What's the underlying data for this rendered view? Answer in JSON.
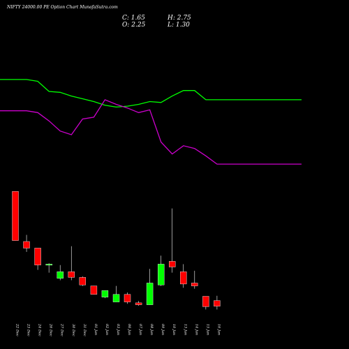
{
  "header": {
    "title": "NIFTY 24000.00  PE Option  Chart MunafaSutra.com",
    "close_label": "C: 1.65",
    "high_label": "H: 2.75",
    "open_label": "O: 2.25",
    "low_label": "L: 1.30"
  },
  "colors": {
    "background": "#000000",
    "up": "#00ff00",
    "down": "#ff0000",
    "line_green": "#00ff00",
    "line_magenta": "#cc00cc",
    "text": "#ffffff"
  },
  "chart_data": {
    "type": "candlestick",
    "categories": [
      "22 Dec",
      "23 Dec",
      "24 Dec",
      "26 Dec",
      "27 Dec",
      "30 Dec",
      "31 Dec",
      "01 Jan",
      "02 Jan",
      "03 Jan",
      "06 Jan",
      "07 Jan",
      "08 Jan",
      "09 Jan",
      "10 Jan",
      "13 Jan",
      "14 Jan",
      "15 Jan",
      "16 Jan"
    ],
    "candles": [
      {
        "open": 13.8,
        "high": 13.8,
        "low": 8.6,
        "close": 8.6
      },
      {
        "open": 8.5,
        "high": 9.2,
        "low": 7.4,
        "close": 7.8
      },
      {
        "open": 7.8,
        "high": 7.8,
        "low": 5.5,
        "close": 6.0
      },
      {
        "open": 6.0,
        "high": 6.2,
        "low": 5.2,
        "close": 6.1
      },
      {
        "open": 4.6,
        "high": 6.0,
        "low": 4.4,
        "close": 5.3
      },
      {
        "open": 5.3,
        "high": 8.0,
        "low": 4.4,
        "close": 4.7
      },
      {
        "open": 4.7,
        "high": 4.8,
        "low": 3.8,
        "close": 3.9
      },
      {
        "open": 3.8,
        "high": 3.8,
        "low": 2.9,
        "close": 2.9
      },
      {
        "open": 2.6,
        "high": 3.3,
        "low": 2.5,
        "close": 3.3
      },
      {
        "open": 2.1,
        "high": 3.8,
        "low": 2.1,
        "close": 2.9
      },
      {
        "open": 2.9,
        "high": 3.1,
        "low": 1.9,
        "close": 2.1
      },
      {
        "open": 2.0,
        "high": 2.2,
        "low": 1.7,
        "close": 1.8
      },
      {
        "open": 1.8,
        "high": 5.6,
        "low": 1.8,
        "close": 4.1
      },
      {
        "open": 3.9,
        "high": 7.0,
        "low": 3.8,
        "close": 6.1
      },
      {
        "open": 6.4,
        "high": 12.0,
        "low": 5.2,
        "close": 5.8
      },
      {
        "open": 5.3,
        "high": 6.1,
        "low": 3.6,
        "close": 4.0
      },
      {
        "open": 4.1,
        "high": 5.4,
        "low": 3.5,
        "close": 3.8
      },
      {
        "open": 2.7,
        "high": 2.7,
        "low": 1.3,
        "close": 1.6
      },
      {
        "open": 2.25,
        "high": 2.75,
        "low": 1.3,
        "close": 1.65
      }
    ],
    "line_green": [
      91,
      91,
      89,
      78,
      77,
      73,
      70,
      67,
      63,
      61,
      62,
      64,
      67,
      66,
      73,
      79,
      79,
      69,
      69
    ],
    "line_magenta": [
      57,
      57,
      55,
      46,
      35,
      31,
      48,
      50,
      69,
      64,
      60,
      55,
      58,
      23,
      10,
      19,
      16,
      8,
      -1
    ],
    "ylim_candles": [
      0,
      15
    ],
    "ylim_lines": [
      -10,
      100
    ],
    "grid": false
  }
}
